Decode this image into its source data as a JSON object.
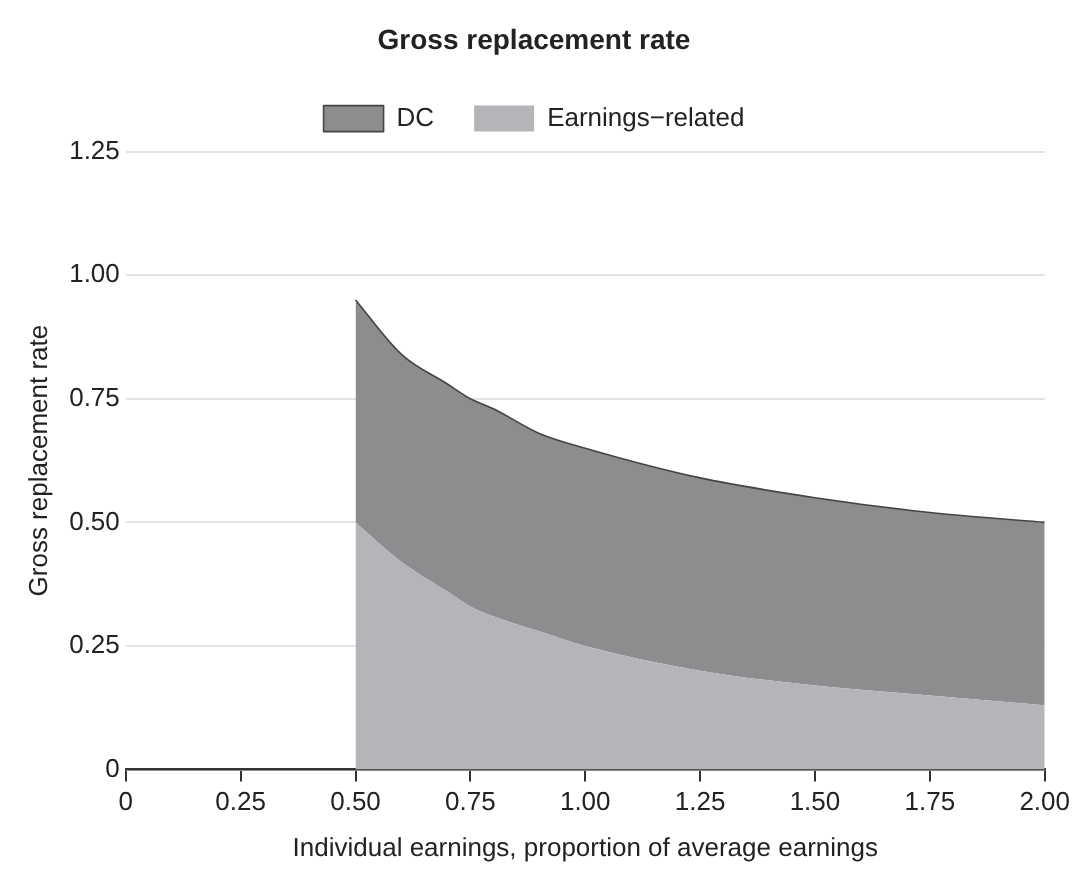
{
  "chart_data": {
    "type": "area",
    "title": "Gross replacement rate",
    "xlabel": "Individual earnings, proportion of average earnings",
    "ylabel": "Gross replacement rate",
    "x": [
      0.5,
      0.6,
      0.7,
      0.75,
      0.8,
      0.9,
      1.0,
      1.25,
      1.5,
      1.75,
      2.0
    ],
    "stacked": true,
    "series": [
      {
        "name": "Earnings−related",
        "color": "#b4b5b8",
        "values": [
          0.5,
          0.42,
          0.36,
          0.33,
          0.31,
          0.28,
          0.25,
          0.2,
          0.17,
          0.15,
          0.13
        ]
      },
      {
        "name": "DC",
        "color": "#8c8d8f",
        "values": [
          0.45,
          0.42,
          0.42,
          0.42,
          0.42,
          0.4,
          0.4,
          0.39,
          0.38,
          0.37,
          0.37
        ]
      }
    ],
    "xlim": [
      0,
      2
    ],
    "xticks": [
      0,
      {
        "value": 0.25,
        "label": "0.25"
      },
      {
        "value": 0.5,
        "label": "0.50"
      },
      {
        "value": 0.75,
        "label": "0.75"
      },
      {
        "value": 1,
        "label": "1.00"
      },
      {
        "value": 1.25,
        "label": "1.25"
      },
      {
        "value": 1.5,
        "label": "1.50"
      },
      {
        "value": 1.75,
        "label": "1.75"
      },
      {
        "value": 2,
        "label": "2.00"
      }
    ],
    "ylim": [
      0,
      1.25
    ],
    "yticks": [
      0,
      {
        "value": 0.25,
        "label": "0.25"
      },
      {
        "value": 0.5,
        "label": "0.50"
      },
      {
        "value": 0.75,
        "label": "0.75"
      },
      {
        "value": 1,
        "label": "1.00"
      },
      {
        "value": 1.25,
        "label": "1.25"
      }
    ],
    "grid": "y",
    "legend": "top"
  }
}
